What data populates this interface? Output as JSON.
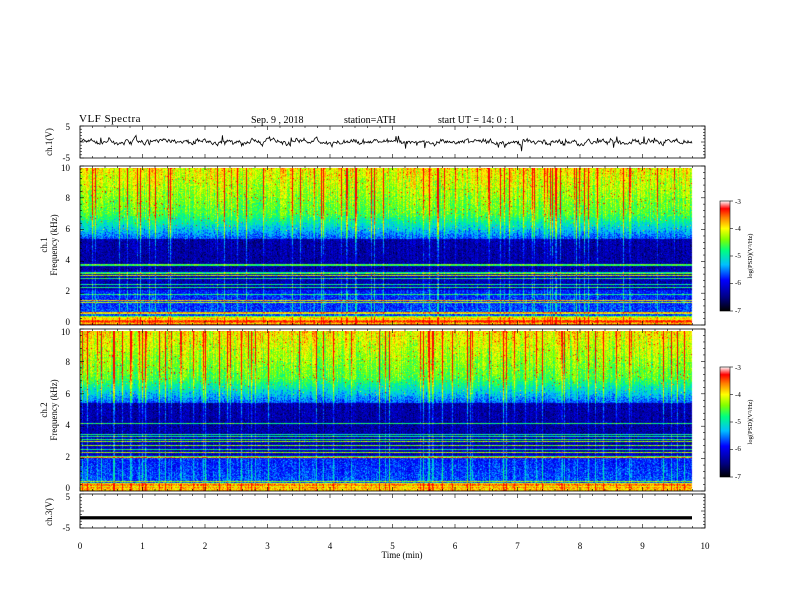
{
  "header": {
    "title": "VLF Spectra",
    "date": "Sep. 9 , 2018",
    "station": "station=ATH",
    "start_time": "start UT = 14: 0 : 1"
  },
  "colors": {
    "colormap": [
      "#000000",
      "#00007f",
      "#0000ff",
      "#00bfff",
      "#00ff7f",
      "#7fff00",
      "#ffff00",
      "#ff7f00",
      "#ff0000",
      "#ffffff"
    ]
  },
  "chart_data": [
    {
      "type": "line",
      "id": "ch1",
      "ylabel": "ch.1(V)",
      "ylim": [
        -5,
        5
      ],
      "yticks": [
        "5",
        "-5"
      ],
      "xlim": [
        0,
        10
      ],
      "description_level": 0.0
    },
    {
      "type": "heatmap",
      "id": "ch1-spec",
      "ylabel_channel": "ch.1",
      "ylabel": "Frequency (kHz)",
      "ylim": [
        0,
        10
      ],
      "yticks": [
        "0",
        "2",
        "4",
        "6",
        "8",
        "10"
      ],
      "xlim": [
        0,
        9.8
      ],
      "colorbar": {
        "label": "log(PSD)(V²/Hz)",
        "ticks": [
          "-3",
          "-4",
          "-5",
          "-6",
          "-7"
        ],
        "range": [
          -7,
          -3
        ]
      }
    },
    {
      "type": "heatmap",
      "id": "ch2-spec",
      "ylabel_channel": "ch.2",
      "ylabel": "Frequency (kHz)",
      "ylim": [
        0,
        10
      ],
      "yticks": [
        "0",
        "2",
        "4",
        "6",
        "8",
        "10"
      ],
      "xlim": [
        0,
        9.8
      ],
      "colorbar": {
        "label": "log(PSD)(V²/Hz)",
        "ticks": [
          "-3",
          "-4",
          "-5",
          "-6",
          "-7"
        ],
        "range": [
          -7,
          -3
        ]
      }
    },
    {
      "type": "line",
      "id": "ch3",
      "ylabel": "ch.3(V)",
      "ylim": [
        -5,
        5
      ],
      "yticks": [
        "5",
        "-5"
      ],
      "xlim": [
        0,
        10
      ],
      "level": -2.0,
      "xlabel": "Time (min)",
      "xticks": [
        "0",
        "1",
        "2",
        "3",
        "4",
        "5",
        "6",
        "7",
        "8",
        "9",
        "10"
      ]
    }
  ]
}
